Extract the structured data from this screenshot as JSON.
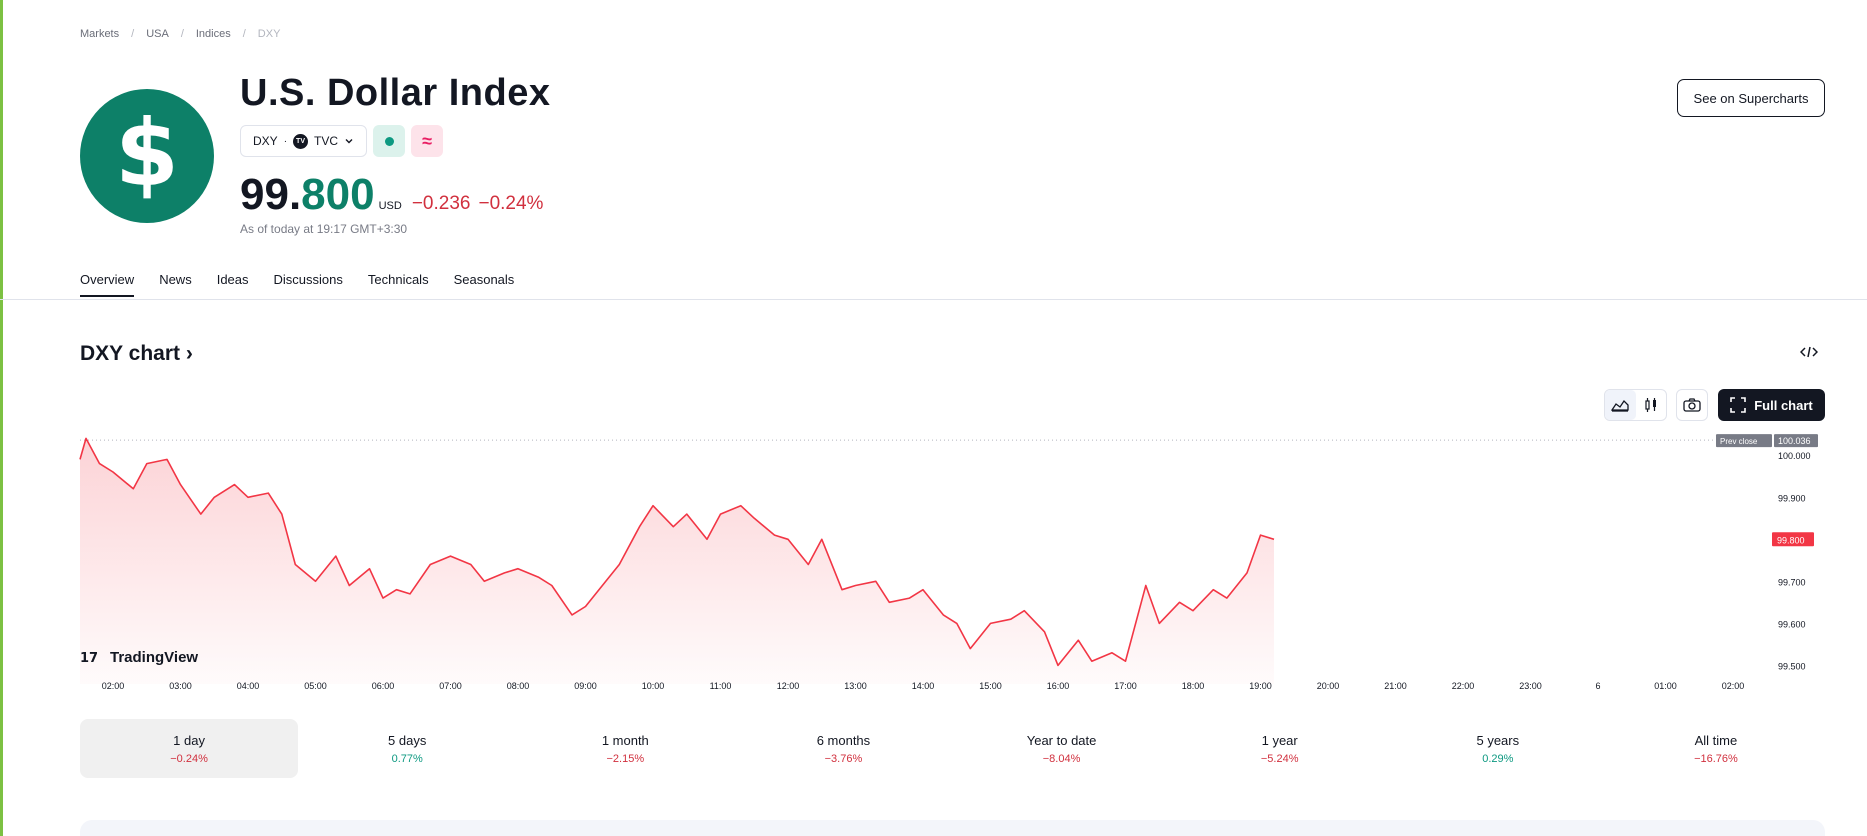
{
  "breadcrumb": [
    "Markets",
    "USA",
    "Indices",
    "DXY"
  ],
  "logo_symbol": "$",
  "title": "U.S. Dollar Index",
  "symbol": {
    "ticker": "DXY",
    "separator": "·",
    "exchange_logo": "TV",
    "exchange": "TVC"
  },
  "status_icons": {
    "market_open": "green-dot-icon",
    "delayed": "wave-icon"
  },
  "price": {
    "integer": "99.",
    "fraction": "800",
    "currency": "USD",
    "change": "−0.236",
    "change_pct": "−0.24%"
  },
  "as_of": "As of today at 19:17 GMT+3:30",
  "supercharts_label": "See on Supercharts",
  "tabs": [
    "Overview",
    "News",
    "Ideas",
    "Discussions",
    "Technicals",
    "Seasonals"
  ],
  "active_tab": "Overview",
  "chart_heading": "DXY chart ›",
  "full_chart_label": "Full chart",
  "colors": {
    "up": "#0d9981",
    "down": "#d1303e",
    "line": "#f23645",
    "brand": "#0d8068"
  },
  "timeframes": [
    {
      "label": "1 day",
      "value": "−0.24%",
      "dir": "neg"
    },
    {
      "label": "5 days",
      "value": "0.77%",
      "dir": "pos"
    },
    {
      "label": "1 month",
      "value": "−2.15%",
      "dir": "neg"
    },
    {
      "label": "6 months",
      "value": "−3.76%",
      "dir": "neg"
    },
    {
      "label": "Year to date",
      "value": "−8.04%",
      "dir": "neg"
    },
    {
      "label": "1 year",
      "value": "−5.24%",
      "dir": "neg"
    },
    {
      "label": "5 years",
      "value": "0.29%",
      "dir": "pos"
    },
    {
      "label": "All time",
      "value": "−16.76%",
      "dir": "neg"
    }
  ],
  "chart_data": {
    "type": "area",
    "title": "",
    "xlabel": "",
    "ylabel": "",
    "x_ticks": [
      "02:00",
      "03:00",
      "04:00",
      "05:00",
      "06:00",
      "07:00",
      "08:00",
      "09:00",
      "10:00",
      "11:00",
      "12:00",
      "13:00",
      "14:00",
      "15:00",
      "16:00",
      "17:00",
      "18:00",
      "19:00",
      "20:00",
      "21:00",
      "22:00",
      "23:00",
      "6",
      "01:00",
      "02:00"
    ],
    "y_ticks": [
      "100.000",
      "99.900",
      "99.700",
      "99.600",
      "99.500"
    ],
    "ylim": [
      99.47,
      100.06
    ],
    "x_hours": [
      1.5,
      1.6,
      1.8,
      2.0,
      2.3,
      2.5,
      2.8,
      3.0,
      3.3,
      3.5,
      3.8,
      4.0,
      4.3,
      4.5,
      4.7,
      5.0,
      5.3,
      5.5,
      5.8,
      6.0,
      6.2,
      6.4,
      6.7,
      7.0,
      7.3,
      7.5,
      7.8,
      8.0,
      8.3,
      8.5,
      8.8,
      9.0,
      9.3,
      9.5,
      9.8,
      10.0,
      10.3,
      10.5,
      10.8,
      11.0,
      11.3,
      11.5,
      11.8,
      12.0,
      12.3,
      12.5,
      12.8,
      13.0,
      13.3,
      13.5,
      13.8,
      14.0,
      14.3,
      14.5,
      14.7,
      15.0,
      15.3,
      15.5,
      15.8,
      16.0,
      16.3,
      16.5,
      16.8,
      17.0,
      17.3,
      17.5,
      17.8,
      18.0,
      18.3,
      18.5,
      18.8,
      19.0,
      19.2
    ],
    "values": [
      99.99,
      100.04,
      99.98,
      99.96,
      99.92,
      99.98,
      99.99,
      99.93,
      99.86,
      99.9,
      99.93,
      99.9,
      99.91,
      99.86,
      99.74,
      99.7,
      99.76,
      99.69,
      99.73,
      99.66,
      99.68,
      99.67,
      99.74,
      99.76,
      99.74,
      99.7,
      99.72,
      99.73,
      99.71,
      99.69,
      99.62,
      99.64,
      99.7,
      99.74,
      99.83,
      99.88,
      99.83,
      99.86,
      99.8,
      99.86,
      99.88,
      99.85,
      99.81,
      99.8,
      99.74,
      99.8,
      99.68,
      99.69,
      99.7,
      99.65,
      99.66,
      99.68,
      99.62,
      99.6,
      99.54,
      99.6,
      99.61,
      99.63,
      99.58,
      99.5,
      99.56,
      99.51,
      99.53,
      99.51,
      99.69,
      99.6,
      99.65,
      99.63,
      99.68,
      99.66,
      99.72,
      99.81,
      99.8
    ],
    "prev_close": 100.036,
    "prev_close_label": "Prev close",
    "prev_close_text": "100.036",
    "last_value": 99.8,
    "last_value_text": "99.800",
    "watermark": "TradingView"
  }
}
